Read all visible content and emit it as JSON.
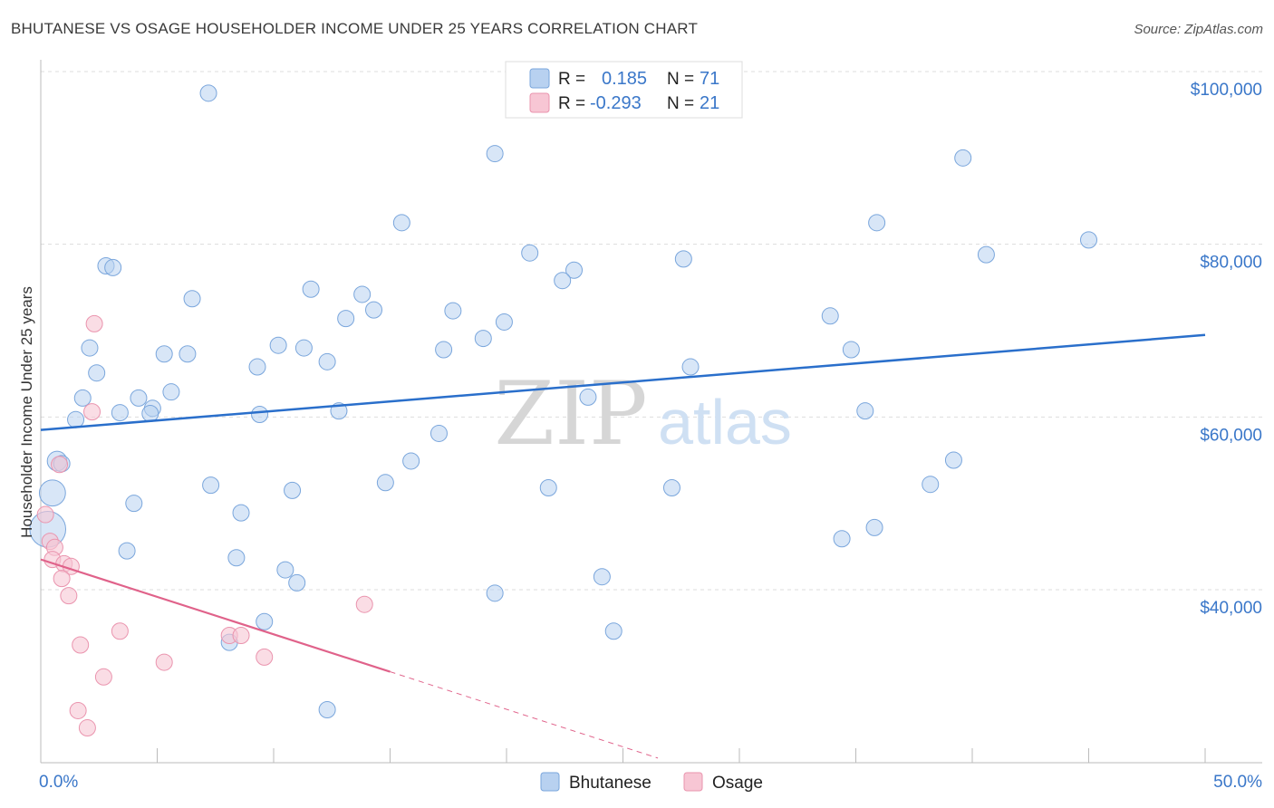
{
  "title": "BHUTANESE VS OSAGE HOUSEHOLDER INCOME UNDER 25 YEARS CORRELATION CHART",
  "source": "Source: ZipAtlas.com",
  "watermark": {
    "zip": "ZIP",
    "atlas": "atlas"
  },
  "legend_box": {
    "rows": [
      {
        "r_label": "R =",
        "r_value": "0.185",
        "n_label": "N =",
        "n_value": "71"
      },
      {
        "r_label": "R =",
        "r_value": "-0.293",
        "n_label": "N =",
        "n_value": "21"
      }
    ]
  },
  "bottom_legend": [
    "Bhutanese",
    "Osage"
  ],
  "colors": {
    "blue_fill": "#b8d1f0",
    "blue_stroke": "#7aa6dc",
    "blue_line": "#2a6fcb",
    "pink_fill": "#f7c6d4",
    "pink_stroke": "#ea94ae",
    "pink_line": "#e0628a",
    "tick_text": "#3a77c9",
    "grid": "#dddddd"
  },
  "chart_data": {
    "type": "scatter",
    "title": "BHUTANESE VS OSAGE HOUSEHOLDER INCOME UNDER 25 YEARS CORRELATION CHART",
    "xlabel": "",
    "ylabel": "Householder Income Under 25 years",
    "xlim": [
      0,
      50
    ],
    "ylim": [
      20000,
      103000
    ],
    "x_tick_labels": [
      "0.0%",
      "50.0%"
    ],
    "y_ticks": [
      40000,
      60000,
      80000,
      100000
    ],
    "y_tick_labels": [
      "$40,000",
      "$60,000",
      "$80,000",
      "$100,000"
    ],
    "grid": true,
    "legend_position": "top-center",
    "series": [
      {
        "name": "Bhutanese",
        "color": "#b8d1f0",
        "R": 0.185,
        "N": 71,
        "trend": {
          "x": [
            0,
            50
          ],
          "y": [
            58500,
            69500
          ]
        },
        "points": [
          {
            "x": 7.2,
            "y": 97500,
            "s": 1
          },
          {
            "x": 19.5,
            "y": 90500,
            "s": 1
          },
          {
            "x": 39.6,
            "y": 90000,
            "s": 1
          },
          {
            "x": 15.5,
            "y": 82500,
            "s": 1
          },
          {
            "x": 35.9,
            "y": 82500,
            "s": 1
          },
          {
            "x": 45.0,
            "y": 80500,
            "s": 1
          },
          {
            "x": 21.0,
            "y": 79000,
            "s": 1
          },
          {
            "x": 40.6,
            "y": 78800,
            "s": 1
          },
          {
            "x": 27.6,
            "y": 78300,
            "s": 1
          },
          {
            "x": 2.8,
            "y": 77500,
            "s": 1
          },
          {
            "x": 3.1,
            "y": 77300,
            "s": 1
          },
          {
            "x": 22.9,
            "y": 77000,
            "s": 1
          },
          {
            "x": 22.4,
            "y": 75800,
            "s": 1
          },
          {
            "x": 11.6,
            "y": 74800,
            "s": 1
          },
          {
            "x": 13.8,
            "y": 74200,
            "s": 1
          },
          {
            "x": 6.5,
            "y": 73700,
            "s": 1
          },
          {
            "x": 14.3,
            "y": 72400,
            "s": 1
          },
          {
            "x": 17.7,
            "y": 72300,
            "s": 1
          },
          {
            "x": 33.9,
            "y": 71700,
            "s": 1
          },
          {
            "x": 13.1,
            "y": 71400,
            "s": 1
          },
          {
            "x": 19.9,
            "y": 71000,
            "s": 1
          },
          {
            "x": 19.0,
            "y": 69100,
            "s": 1
          },
          {
            "x": 10.2,
            "y": 68300,
            "s": 1
          },
          {
            "x": 11.3,
            "y": 68000,
            "s": 1
          },
          {
            "x": 2.1,
            "y": 68000,
            "s": 1
          },
          {
            "x": 17.3,
            "y": 67800,
            "s": 1
          },
          {
            "x": 34.8,
            "y": 67800,
            "s": 1
          },
          {
            "x": 5.3,
            "y": 67300,
            "s": 1
          },
          {
            "x": 6.3,
            "y": 67300,
            "s": 1
          },
          {
            "x": 12.3,
            "y": 66400,
            "s": 1
          },
          {
            "x": 9.3,
            "y": 65800,
            "s": 1
          },
          {
            "x": 27.9,
            "y": 65800,
            "s": 1
          },
          {
            "x": 2.4,
            "y": 65100,
            "s": 1
          },
          {
            "x": 5.6,
            "y": 62900,
            "s": 1
          },
          {
            "x": 1.8,
            "y": 62200,
            "s": 1
          },
          {
            "x": 4.2,
            "y": 62200,
            "s": 1
          },
          {
            "x": 23.5,
            "y": 62300,
            "s": 1
          },
          {
            "x": 4.8,
            "y": 61000,
            "s": 1
          },
          {
            "x": 3.4,
            "y": 60500,
            "s": 1
          },
          {
            "x": 4.7,
            "y": 60400,
            "s": 1
          },
          {
            "x": 9.4,
            "y": 60300,
            "s": 1
          },
          {
            "x": 12.8,
            "y": 60700,
            "s": 1
          },
          {
            "x": 35.4,
            "y": 60700,
            "s": 1
          },
          {
            "x": 1.5,
            "y": 59700,
            "s": 1
          },
          {
            "x": 17.1,
            "y": 58100,
            "s": 1
          },
          {
            "x": 0.7,
            "y": 54900,
            "s": 1.2
          },
          {
            "x": 0.9,
            "y": 54600,
            "s": 1
          },
          {
            "x": 15.9,
            "y": 54900,
            "s": 1
          },
          {
            "x": 39.2,
            "y": 55000,
            "s": 1
          },
          {
            "x": 14.8,
            "y": 52400,
            "s": 1
          },
          {
            "x": 7.3,
            "y": 52100,
            "s": 1
          },
          {
            "x": 10.8,
            "y": 51500,
            "s": 1
          },
          {
            "x": 21.8,
            "y": 51800,
            "s": 1
          },
          {
            "x": 27.1,
            "y": 51800,
            "s": 1
          },
          {
            "x": 38.2,
            "y": 52200,
            "s": 1
          },
          {
            "x": 0.5,
            "y": 51200,
            "s": 1.6
          },
          {
            "x": 4.0,
            "y": 50000,
            "s": 1
          },
          {
            "x": 8.6,
            "y": 48900,
            "s": 1
          },
          {
            "x": 0.3,
            "y": 47000,
            "s": 2.2
          },
          {
            "x": 35.8,
            "y": 47200,
            "s": 1
          },
          {
            "x": 34.4,
            "y": 45900,
            "s": 1
          },
          {
            "x": 3.7,
            "y": 44500,
            "s": 1
          },
          {
            "x": 8.4,
            "y": 43700,
            "s": 1
          },
          {
            "x": 10.5,
            "y": 42300,
            "s": 1
          },
          {
            "x": 11.0,
            "y": 40800,
            "s": 1
          },
          {
            "x": 24.1,
            "y": 41500,
            "s": 1
          },
          {
            "x": 19.5,
            "y": 39600,
            "s": 1
          },
          {
            "x": 9.6,
            "y": 36300,
            "s": 1
          },
          {
            "x": 24.6,
            "y": 35200,
            "s": 1
          },
          {
            "x": 8.1,
            "y": 33900,
            "s": 1
          },
          {
            "x": 12.3,
            "y": 26100,
            "s": 1
          }
        ]
      },
      {
        "name": "Osage",
        "color": "#f7c6d4",
        "R": -0.293,
        "N": 21,
        "trend": {
          "x": [
            0,
            15
          ],
          "y": [
            43500,
            30500
          ]
        },
        "trend_dashed": {
          "x": [
            15,
            26.5
          ],
          "y": [
            30500,
            20500
          ]
        },
        "points": [
          {
            "x": 2.3,
            "y": 70800,
            "s": 1
          },
          {
            "x": 2.2,
            "y": 60600,
            "s": 1
          },
          {
            "x": 0.8,
            "y": 54500,
            "s": 1
          },
          {
            "x": 0.2,
            "y": 48700,
            "s": 1
          },
          {
            "x": 0.4,
            "y": 45600,
            "s": 1
          },
          {
            "x": 0.6,
            "y": 44900,
            "s": 1
          },
          {
            "x": 0.5,
            "y": 43500,
            "s": 1
          },
          {
            "x": 1.0,
            "y": 43000,
            "s": 1
          },
          {
            "x": 1.3,
            "y": 42700,
            "s": 1
          },
          {
            "x": 0.9,
            "y": 41300,
            "s": 1
          },
          {
            "x": 1.2,
            "y": 39300,
            "s": 1
          },
          {
            "x": 13.9,
            "y": 38300,
            "s": 1
          },
          {
            "x": 3.4,
            "y": 35200,
            "s": 1
          },
          {
            "x": 8.1,
            "y": 34700,
            "s": 1
          },
          {
            "x": 8.6,
            "y": 34700,
            "s": 1
          },
          {
            "x": 1.7,
            "y": 33600,
            "s": 1
          },
          {
            "x": 9.6,
            "y": 32200,
            "s": 1
          },
          {
            "x": 5.3,
            "y": 31600,
            "s": 1
          },
          {
            "x": 2.7,
            "y": 29900,
            "s": 1
          },
          {
            "x": 1.6,
            "y": 26000,
            "s": 1
          },
          {
            "x": 2.0,
            "y": 24000,
            "s": 1
          }
        ]
      }
    ]
  }
}
